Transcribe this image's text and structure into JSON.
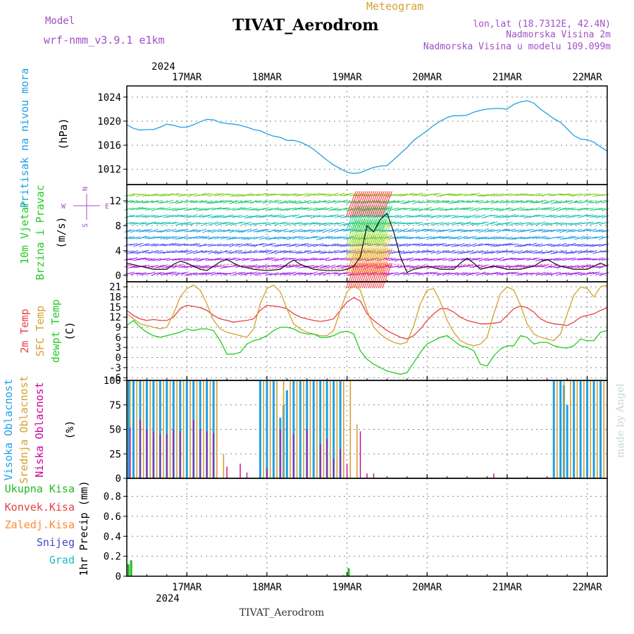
{
  "header": {
    "model_label": "Model",
    "model_name": "wrf-nmm_v3.9.1 e1km",
    "product": "Meteogram",
    "station": "TIVAT_Aerodrom",
    "lonlat": "lon,lat (18.7312E, 42.4N)",
    "elev": "Nadmorska Visina 2m",
    "elev_model": "Nadmorska Visina u modelu 109.099m"
  },
  "footer": {
    "station": "TIVAT_Aerodrom",
    "watermark": "made by Angel"
  },
  "time_axis": {
    "year": "2024",
    "dates": [
      "17MAR",
      "18MAR",
      "19MAR",
      "20MAR",
      "21MAR",
      "22MAR"
    ],
    "date_hours": [
      24,
      48,
      72,
      96,
      120,
      144
    ],
    "range_hours": [
      6,
      150
    ]
  },
  "colors": {
    "pressure": "#1ea0e6",
    "temp": "#e84040",
    "sfc": "#d4a030",
    "dew": "#22cc22",
    "cloud_high": "#1ea0e6",
    "cloud_mid": "#d4a030",
    "cloud_low": "#cc0099",
    "precip_total": "#22bb22",
    "precip_conv": "#e84040",
    "precip_frozen": "#ff8833",
    "snow": "#4444cc",
    "hail": "#22bbbb",
    "wind_label": "#22cc22",
    "legend_purple": "#a050c8"
  },
  "chart_data": [
    {
      "type": "line",
      "panel": "pressure",
      "ylabel": [
        "Pritisak na nivou mora",
        "(hPa)"
      ],
      "ylim": [
        1010.5,
        1024.8
      ],
      "yticks": [
        1012,
        1016,
        1020,
        1024
      ],
      "grid": true,
      "series": [
        {
          "x": [
            6,
            8,
            10,
            12,
            14,
            16,
            18,
            20,
            22,
            24,
            26,
            28,
            30,
            32,
            34,
            36,
            38,
            40,
            42,
            44,
            46,
            48,
            50,
            52,
            54,
            56,
            58,
            60,
            62,
            64,
            66,
            68,
            70,
            72,
            74,
            76,
            78,
            80,
            82,
            84,
            86,
            88,
            90,
            92,
            94,
            96,
            98,
            100,
            102,
            104,
            106,
            108,
            110,
            112,
            114,
            116,
            118,
            120,
            122,
            124,
            126,
            128,
            130,
            132,
            134,
            136,
            138,
            140,
            142,
            144,
            146,
            148,
            150
          ],
          "values": [
            1019.4,
            1018.8,
            1018.5,
            1018.6,
            1018.6,
            1019.0,
            1019.5,
            1019.3,
            1019.0,
            1019.0,
            1019.4,
            1019.9,
            1020.3,
            1020.2,
            1019.8,
            1019.6,
            1019.5,
            1019.3,
            1019.0,
            1018.6,
            1018.4,
            1017.9,
            1017.5,
            1017.3,
            1016.8,
            1016.8,
            1016.5,
            1016.0,
            1015.3,
            1014.4,
            1013.5,
            1012.7,
            1012.1,
            1011.5,
            1011.3,
            1011.4,
            1011.9,
            1012.3,
            1012.5,
            1012.6,
            1013.6,
            1014.6,
            1015.6,
            1016.8,
            1017.6,
            1018.4,
            1019.3,
            1020.0,
            1020.6,
            1020.9,
            1020.9,
            1021.0,
            1021.5,
            1021.8,
            1022.0,
            1022.1,
            1022.1,
            1022.0,
            1022.8,
            1023.2,
            1023.4,
            1023.0,
            1022.0,
            1021.2,
            1020.4,
            1019.8,
            1018.7,
            1017.6,
            1017.0,
            1016.9,
            1016.5,
            1015.7,
            1015.0
          ]
        }
      ]
    },
    {
      "type": "line",
      "panel": "wind",
      "ylabel": [
        "10m Vjetar",
        "Brzina i Pravac",
        "(m/s)"
      ],
      "ylim": [
        -1,
        14.6
      ],
      "yticks": [
        0,
        4,
        8,
        12
      ],
      "grid": true,
      "compass": {
        "n": "N",
        "s": "S",
        "w": "W",
        "e": "E"
      },
      "series": [
        {
          "name": "speed",
          "x": [
            6,
            10,
            14,
            18,
            20,
            22,
            24,
            28,
            30,
            32,
            34,
            36,
            38,
            40,
            44,
            48,
            52,
            54,
            56,
            58,
            62,
            66,
            70,
            72,
            74,
            76,
            78,
            80,
            82,
            84,
            86,
            88,
            90,
            92,
            94,
            96,
            100,
            104,
            106,
            108,
            110,
            112,
            116,
            120,
            124,
            128,
            130,
            132,
            134,
            136,
            140,
            144,
            148,
            150
          ],
          "values": [
            2.0,
            1.5,
            1.0,
            1.0,
            1.8,
            2.3,
            2.0,
            1.0,
            0.8,
            1.5,
            2.2,
            2.6,
            2.0,
            1.5,
            1.0,
            0.8,
            1.0,
            1.8,
            2.5,
            1.8,
            1.0,
            0.8,
            0.8,
            1.0,
            1.5,
            3.0,
            8.0,
            7.0,
            9.0,
            10.0,
            7.0,
            3.0,
            0.5,
            1.0,
            1.2,
            1.5,
            1.0,
            1.0,
            2.0,
            2.8,
            2.0,
            1.0,
            1.5,
            1.0,
            1.0,
            1.5,
            2.2,
            2.6,
            2.0,
            1.5,
            1.0,
            1.0,
            2.0,
            1.5
          ]
        }
      ]
    },
    {
      "type": "line",
      "panel": "temperature",
      "ylabel": [
        "2m Temp",
        "SFC Temp",
        "dewpt Temp",
        "(C)"
      ],
      "ylim": [
        -6.8,
        22.5
      ],
      "yticks": [
        -6,
        -3,
        0,
        3,
        6,
        9,
        12,
        15,
        18,
        21
      ],
      "grid": true,
      "series": [
        {
          "name": "2m Temp",
          "x": [
            6,
            8,
            10,
            12,
            14,
            16,
            18,
            20,
            22,
            24,
            26,
            28,
            30,
            32,
            34,
            36,
            38,
            40,
            42,
            44,
            46,
            48,
            50,
            52,
            54,
            56,
            58,
            60,
            62,
            64,
            66,
            68,
            70,
            72,
            74,
            76,
            78,
            80,
            82,
            84,
            86,
            88,
            90,
            92,
            94,
            96,
            98,
            100,
            102,
            104,
            106,
            108,
            110,
            112,
            114,
            116,
            118,
            120,
            122,
            124,
            126,
            128,
            130,
            132,
            134,
            136,
            138,
            140,
            142,
            144,
            146,
            148,
            150
          ],
          "values": [
            14.0,
            12.5,
            11.5,
            11.0,
            11.3,
            11.0,
            11.0,
            12.0,
            14.5,
            15.5,
            15.2,
            14.8,
            14.0,
            12.5,
            11.5,
            11.0,
            10.5,
            10.8,
            11.0,
            11.5,
            14.0,
            15.5,
            15.3,
            15.0,
            14.5,
            13.0,
            12.0,
            11.5,
            11.0,
            10.7,
            11.0,
            11.5,
            14.0,
            16.5,
            17.8,
            16.8,
            13.0,
            11.0,
            9.5,
            8.0,
            7.0,
            6.0,
            5.5,
            6.5,
            8.5,
            11.0,
            13.0,
            14.5,
            14.5,
            13.5,
            12.0,
            11.0,
            10.5,
            10.0,
            10.0,
            10.2,
            10.5,
            12.5,
            14.5,
            15.3,
            14.8,
            13.5,
            11.5,
            10.5,
            10.0,
            9.8,
            9.5,
            10.5,
            12.0,
            12.5,
            13.0,
            14.0,
            14.8
          ]
        },
        {
          "name": "SFC Temp",
          "x": [
            6,
            8,
            10,
            12,
            14,
            16,
            18,
            20,
            22,
            24,
            26,
            28,
            30,
            32,
            34,
            36,
            38,
            40,
            42,
            44,
            46,
            48,
            50,
            52,
            54,
            56,
            58,
            60,
            62,
            64,
            66,
            68,
            70,
            72,
            74,
            76,
            78,
            80,
            82,
            84,
            86,
            88,
            90,
            92,
            94,
            96,
            98,
            100,
            102,
            104,
            106,
            108,
            110,
            112,
            114,
            116,
            118,
            120,
            122,
            124,
            126,
            128,
            130,
            132,
            134,
            136,
            138,
            140,
            142,
            144,
            146,
            148,
            150
          ],
          "values": [
            13.0,
            11.5,
            10.0,
            9.5,
            9.0,
            8.5,
            9.0,
            13.0,
            18.0,
            20.5,
            21.5,
            20.0,
            16.0,
            11.0,
            8.5,
            7.5,
            7.0,
            6.5,
            6.0,
            8.5,
            16.0,
            20.5,
            21.5,
            19.5,
            14.5,
            10.0,
            8.5,
            7.5,
            7.0,
            6.5,
            6.5,
            8.0,
            14.0,
            19.5,
            21.5,
            20.0,
            14.0,
            9.0,
            7.0,
            5.5,
            4.5,
            4.0,
            4.5,
            9.5,
            16.0,
            20.0,
            20.5,
            16.5,
            11.0,
            7.5,
            5.0,
            4.0,
            3.5,
            4.0,
            6.0,
            13.0,
            19.0,
            21.0,
            20.0,
            15.5,
            10.0,
            7.0,
            6.0,
            5.5,
            5.0,
            7.0,
            13.0,
            18.5,
            21.0,
            20.5,
            18.0,
            21.0,
            21.5
          ]
        },
        {
          "name": "dewpt Temp",
          "x": [
            6,
            8,
            10,
            12,
            14,
            16,
            18,
            20,
            22,
            24,
            26,
            28,
            30,
            32,
            34,
            36,
            38,
            40,
            42,
            44,
            46,
            48,
            50,
            52,
            54,
            56,
            58,
            60,
            62,
            64,
            66,
            68,
            70,
            72,
            74,
            76,
            78,
            80,
            82,
            84,
            86,
            88,
            90,
            92,
            94,
            96,
            98,
            100,
            102,
            104,
            106,
            108,
            110,
            112,
            114,
            116,
            118,
            120,
            122,
            124,
            126,
            128,
            130,
            132,
            134,
            136,
            138,
            140,
            142,
            144,
            146,
            148,
            150
          ],
          "values": [
            9.5,
            11.0,
            9.0,
            7.5,
            6.5,
            6.0,
            6.5,
            7.0,
            7.5,
            8.5,
            8.0,
            8.5,
            8.5,
            8.0,
            5.0,
            1.0,
            1.0,
            1.5,
            4.0,
            5.0,
            5.5,
            6.5,
            8.0,
            9.0,
            9.0,
            8.5,
            7.5,
            7.0,
            7.0,
            6.0,
            6.0,
            6.5,
            7.5,
            7.8,
            7.0,
            2.0,
            -0.5,
            -2.0,
            -3.0,
            -4.0,
            -4.5,
            -5.0,
            -4.5,
            -1.5,
            1.5,
            4.0,
            5.0,
            6.0,
            6.5,
            5.0,
            3.5,
            3.0,
            2.0,
            -2.0,
            -2.5,
            0.5,
            2.5,
            3.5,
            3.5,
            6.5,
            6.0,
            4.0,
            4.5,
            4.5,
            3.5,
            3.0,
            2.8,
            3.5,
            5.5,
            5.0,
            5.0,
            7.5,
            8.0
          ]
        }
      ]
    },
    {
      "type": "bar",
      "panel": "clouds",
      "ylabel": [
        "Visoka Oblacnost",
        "Srednja Oblacnost",
        "Niska Oblacnost",
        "(%)"
      ],
      "ylim": [
        0,
        100
      ],
      "yticks": [
        0,
        25,
        50,
        75,
        100
      ],
      "grid": true,
      "series": [
        {
          "name": "Visoka Oblacnost",
          "x": [
            6.5,
            8,
            10,
            12,
            14,
            16,
            18,
            20,
            22,
            24,
            26,
            28,
            30,
            32,
            46,
            48,
            50,
            52,
            53,
            54,
            56,
            58,
            60,
            62,
            64,
            66,
            68,
            70,
            134,
            136,
            137,
            138,
            140,
            142,
            144,
            146,
            148
          ],
          "values": [
            100,
            100,
            100,
            100,
            100,
            100,
            100,
            100,
            100,
            100,
            100,
            100,
            100,
            100,
            100,
            100,
            100,
            62,
            75,
            90,
            100,
            100,
            100,
            100,
            100,
            100,
            100,
            100,
            100,
            100,
            95,
            75,
            100,
            100,
            100,
            100,
            100
          ]
        },
        {
          "name": "Srednja Oblacnost",
          "x": [
            7,
            9,
            11,
            13,
            15,
            17,
            19,
            21,
            23,
            25,
            27,
            29,
            31,
            33,
            35,
            47,
            49,
            51,
            53,
            55,
            57,
            59,
            61,
            63,
            65,
            67,
            69,
            71,
            73,
            75,
            135,
            137,
            139,
            141,
            143,
            145,
            147,
            149
          ],
          "values": [
            100,
            100,
            100,
            100,
            100,
            100,
            100,
            100,
            100,
            100,
            100,
            100,
            100,
            100,
            25,
            100,
            100,
            100,
            100,
            100,
            100,
            100,
            100,
            100,
            100,
            100,
            100,
            100,
            100,
            55,
            100,
            100,
            100,
            100,
            100,
            100,
            100,
            100
          ]
        },
        {
          "name": "Niska Oblacnost",
          "x": [
            7,
            10,
            12,
            14,
            16,
            18,
            20,
            22,
            26,
            28,
            30,
            32,
            36,
            40,
            42,
            48,
            52,
            56,
            60,
            64,
            66,
            68,
            70,
            72,
            76,
            78,
            80,
            116
          ],
          "values": [
            52,
            60,
            50,
            48,
            45,
            45,
            50,
            48,
            60,
            50,
            48,
            46,
            12,
            15,
            6,
            10,
            50,
            45,
            50,
            35,
            40,
            20,
            30,
            15,
            48,
            5,
            5,
            5
          ]
        }
      ]
    },
    {
      "type": "bar",
      "panel": "precip",
      "ylabel": [
        "1hr Precip (mm)"
      ],
      "ylim": [
        0,
        0.98
      ],
      "yticks": [
        0,
        0.2,
        0.4,
        0.6,
        0.8
      ],
      "grid": true,
      "legend": [
        "Ukupna Kisa",
        "Konvek.Kisa",
        "Zaledj.Kisa",
        "Snijeg",
        "Grad"
      ],
      "series": [
        {
          "name": "Ukupna Kisa",
          "x": [
            6.5,
            7.3,
            71,
            72.5
          ],
          "values": [
            0.12,
            0.16,
            0.01,
            0.08
          ]
        }
      ]
    }
  ]
}
